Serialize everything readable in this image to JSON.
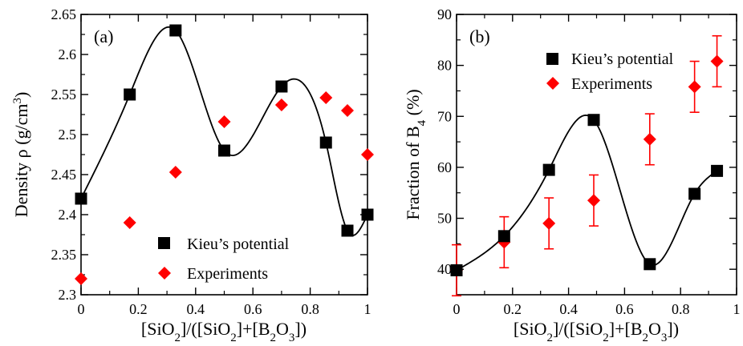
{
  "chart_data": [
    {
      "type": "scatter",
      "panel_label": "(a)",
      "ylabel": "Density ρ (g/cm³)",
      "ylabel_main": "Density ρ (g/cm",
      "ylabel_sup": "3",
      "ylabel_end": ")",
      "xlabel": "[SiO₂]/([SiO₂]+[B₂O₃])",
      "xlim": [
        0,
        1
      ],
      "ylim": [
        2.3,
        2.65
      ],
      "xticks": [
        "0",
        "0.2",
        "0.4",
        "0.6",
        "0.8",
        "1"
      ],
      "yticks": [
        "2.3",
        "2.35",
        "2.4",
        "2.45",
        "2.5",
        "2.55",
        "2.6",
        "2.65"
      ],
      "legend_position": "bottom-right",
      "series": [
        {
          "name": "Kieu’s potential",
          "marker": "square",
          "color": "#000000",
          "x": [
            0,
            0.17,
            0.33,
            0.5,
            0.7,
            0.855,
            0.93,
            1.0
          ],
          "y": [
            2.42,
            2.55,
            2.63,
            2.48,
            2.56,
            2.49,
            2.38,
            2.4
          ],
          "fit_curve": true
        },
        {
          "name": "Experiments",
          "marker": "diamond",
          "color": "#ff0000",
          "x": [
            0,
            0.17,
            0.33,
            0.5,
            0.7,
            0.855,
            0.93,
            1.0
          ],
          "y": [
            2.32,
            2.39,
            2.453,
            2.516,
            2.537,
            2.546,
            2.53,
            2.475
          ]
        }
      ]
    },
    {
      "type": "scatter",
      "panel_label": "(b)",
      "ylabel": "Fraction of B₄ (%)",
      "xlabel": "[SiO₂]/([SiO₂]+[B₂O₃])",
      "xlim": [
        0,
        1
      ],
      "ylim": [
        35,
        90
      ],
      "xticks": [
        "0",
        "0.2",
        "0.4",
        "0.6",
        "0.8",
        "1"
      ],
      "yticks": [
        "40",
        "50",
        "60",
        "70",
        "80",
        "90"
      ],
      "legend_position": "top-right",
      "series": [
        {
          "name": "Kieu’s potential",
          "marker": "square",
          "color": "#000000",
          "x": [
            0,
            0.17,
            0.33,
            0.49,
            0.69,
            0.85,
            0.93
          ],
          "y": [
            39.8,
            46.5,
            59.5,
            69.3,
            41.0,
            54.8,
            59.3
          ],
          "fit_curve": true
        },
        {
          "name": "Experiments",
          "marker": "diamond",
          "color": "#ff0000",
          "x": [
            0,
            0.17,
            0.33,
            0.49,
            0.69,
            0.85,
            0.93
          ],
          "y": [
            39.8,
            45.3,
            49.0,
            53.5,
            65.5,
            75.8,
            80.8
          ],
          "yerr": [
            5,
            5,
            5,
            5,
            5,
            5,
            5
          ]
        }
      ]
    }
  ]
}
